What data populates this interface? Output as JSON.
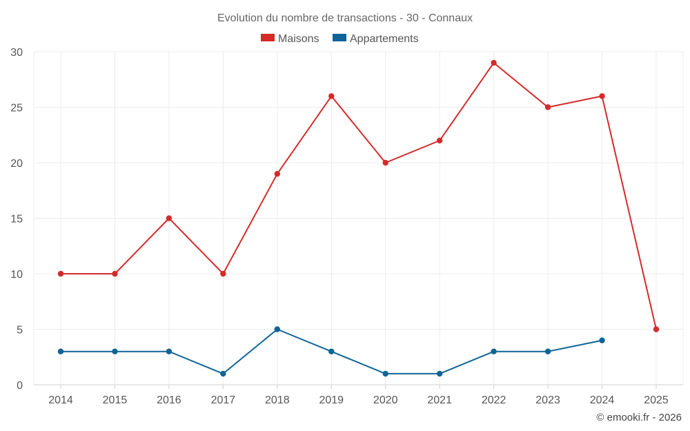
{
  "chart_data": {
    "type": "line",
    "title": "Evolution du nombre de transactions - 30 - Connaux",
    "categories": [
      "2014",
      "2015",
      "2016",
      "2017",
      "2018",
      "2019",
      "2020",
      "2021",
      "2022",
      "2023",
      "2024",
      "2025"
    ],
    "series": [
      {
        "name": "Maisons",
        "color": "#d42a2a",
        "values": [
          10,
          10,
          15,
          10,
          19,
          26,
          20,
          22,
          29,
          25,
          26,
          5
        ]
      },
      {
        "name": "Appartements",
        "color": "#0f6496",
        "values": [
          3,
          3,
          3,
          1,
          5,
          3,
          1,
          1,
          3,
          3,
          4,
          null
        ]
      }
    ],
    "ylim": [
      0,
      30
    ],
    "yticks": [
      0,
      5,
      10,
      15,
      20,
      25,
      30
    ],
    "xlabel": "",
    "ylabel": "",
    "grid": true,
    "legend_position": "top-center"
  },
  "credit": "© emooki.fr - 2026"
}
